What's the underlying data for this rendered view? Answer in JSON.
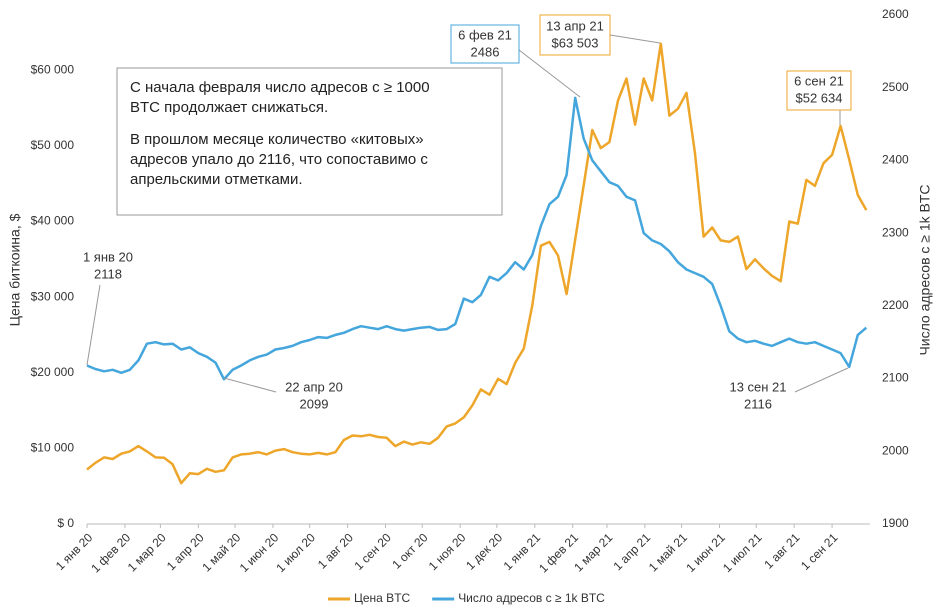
{
  "chart_data": {
    "type": "line",
    "x": [
      0,
      7,
      14,
      21,
      28,
      35,
      42,
      49,
      56,
      63,
      70,
      77,
      84,
      91,
      98,
      105,
      112,
      119,
      126,
      133,
      140,
      147,
      154,
      161,
      168,
      175,
      182,
      189,
      196,
      203,
      210,
      217,
      224,
      231,
      238,
      245,
      252,
      259,
      266,
      273,
      280,
      287,
      294,
      301,
      308,
      315,
      322,
      329,
      336,
      343,
      350,
      357,
      364,
      371,
      378,
      385,
      392,
      399,
      406,
      413,
      420,
      427,
      434,
      441,
      448,
      455,
      462,
      469,
      476,
      483,
      490,
      497,
      504,
      511,
      518,
      525,
      532,
      539,
      546,
      553,
      560,
      567,
      574,
      581,
      588,
      595,
      602,
      609,
      616,
      623,
      630,
      637
    ],
    "xlim": [
      0,
      640
    ],
    "xticks": [
      {
        "value": 0,
        "label": "1 янв 20"
      },
      {
        "value": 31,
        "label": "1 фев 20"
      },
      {
        "value": 60,
        "label": "1 мар 20"
      },
      {
        "value": 91,
        "label": "1 апр 20"
      },
      {
        "value": 121,
        "label": "1 май 20"
      },
      {
        "value": 152,
        "label": "1 июн 20"
      },
      {
        "value": 182,
        "label": "1 июл 20"
      },
      {
        "value": 213,
        "label": "1 авг 20"
      },
      {
        "value": 244,
        "label": "1 сен 20"
      },
      {
        "value": 274,
        "label": "1 окт 20"
      },
      {
        "value": 305,
        "label": "1 ноя 20"
      },
      {
        "value": 335,
        "label": "1 дек 20"
      },
      {
        "value": 366,
        "label": "1 янв 21"
      },
      {
        "value": 397,
        "label": "1 фев 21"
      },
      {
        "value": 425,
        "label": "1 мар 21"
      },
      {
        "value": 456,
        "label": "1 апр 21"
      },
      {
        "value": 486,
        "label": "1 май 21"
      },
      {
        "value": 517,
        "label": "1 июн 21"
      },
      {
        "value": 547,
        "label": "1 июл 21"
      },
      {
        "value": 578,
        "label": "1 авг 21"
      },
      {
        "value": 609,
        "label": "1 сен 21"
      }
    ],
    "ylim": [
      0,
      67300
    ],
    "yticks": [
      {
        "value": 0,
        "label": "$ 0"
      },
      {
        "value": 10000,
        "label": "$10 000"
      },
      {
        "value": 20000,
        "label": "$20 000"
      },
      {
        "value": 30000,
        "label": "$30 000"
      },
      {
        "value": 40000,
        "label": "$40 000"
      },
      {
        "value": 50000,
        "label": "$50 000"
      },
      {
        "value": 60000,
        "label": "$60 000"
      }
    ],
    "y2lim": [
      1900,
      2600
    ],
    "y2ticks": [
      1900,
      2000,
      2100,
      2200,
      2300,
      2400,
      2500,
      2600
    ],
    "ylabel": "Цена биткоина, $",
    "y2label": "Число адресов с ≥ 1k BTC",
    "grid": false,
    "legend": "bottom",
    "series": [
      {
        "name": "Цена BTC",
        "color": "#eea62a",
        "axis": "y",
        "values": [
          7200,
          8100,
          8800,
          8600,
          9300,
          9600,
          10300,
          9600,
          8800,
          8750,
          7900,
          5400,
          6700,
          6600,
          7300,
          6900,
          7100,
          8800,
          9200,
          9300,
          9500,
          9200,
          9700,
          9900,
          9500,
          9300,
          9200,
          9400,
          9200,
          9500,
          11100,
          11700,
          11600,
          11800,
          11500,
          11400,
          10300,
          10900,
          10500,
          10800,
          10600,
          11400,
          12900,
          13300,
          14100,
          15700,
          17800,
          17100,
          19200,
          18500,
          21300,
          23200,
          28900,
          36800,
          37300,
          35500,
          30400,
          37600,
          44800,
          52100,
          49700,
          50500,
          56000,
          58900,
          52800,
          58900,
          56000,
          63503,
          54000,
          54900,
          57000,
          49000,
          38000,
          39200,
          37500,
          37300,
          38000,
          33700,
          35000,
          33800,
          32800,
          32100,
          40000,
          39700,
          45500,
          44700,
          47700,
          48800,
          52634,
          48200,
          43500,
          41500
        ]
      },
      {
        "name": "Число адресов с ≥ 1k BTC",
        "color": "#44a6dc",
        "axis": "y2",
        "values": [
          2118,
          2113,
          2110,
          2112,
          2108,
          2112,
          2125,
          2148,
          2150,
          2147,
          2148,
          2140,
          2143,
          2135,
          2130,
          2122,
          2099,
          2112,
          2118,
          2125,
          2130,
          2133,
          2140,
          2142,
          2145,
          2150,
          2153,
          2157,
          2156,
          2160,
          2163,
          2168,
          2172,
          2170,
          2168,
          2172,
          2168,
          2166,
          2168,
          2170,
          2171,
          2167,
          2168,
          2175,
          2210,
          2205,
          2215,
          2240,
          2235,
          2245,
          2260,
          2250,
          2270,
          2310,
          2340,
          2350,
          2380,
          2486,
          2430,
          2400,
          2385,
          2370,
          2365,
          2350,
          2345,
          2300,
          2290,
          2285,
          2275,
          2260,
          2250,
          2245,
          2240,
          2230,
          2200,
          2165,
          2155,
          2150,
          2152,
          2148,
          2145,
          2150,
          2155,
          2150,
          2148,
          2150,
          2145,
          2140,
          2135,
          2116,
          2160,
          2170
        ]
      }
    ],
    "annotations": [
      {
        "text": [
          "1 янв 20",
          "2118"
        ]
      },
      {
        "text": [
          "22 апр 20",
          "2099"
        ]
      },
      {
        "text": [
          "6 фев 21",
          "2486"
        ]
      },
      {
        "text": [
          "13 апр 21",
          "$63 503"
        ]
      },
      {
        "text": [
          "6 сен 21",
          "$52 634"
        ]
      },
      {
        "text": [
          "13 сен 21",
          "2116"
        ]
      }
    ],
    "note": [
      [
        "С начала февраля число адресов с ≥ 1000",
        "BTC продолжает снижаться."
      ],
      [
        "В прошлом месяце количество «китовых»",
        "адресов упало до 2116, что сопоставимо с",
        "апрельскими отметками."
      ]
    ]
  }
}
